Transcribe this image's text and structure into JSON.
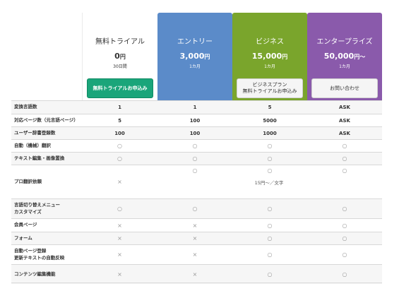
{
  "plans": [
    {
      "name": "無料トライアル",
      "price": "0",
      "unit": "円",
      "sub": "30日間",
      "button": [
        "無料トライアルお申込み"
      ]
    },
    {
      "name": "エントリー",
      "price": "3,000",
      "unit": "円",
      "sub": "1カ月",
      "button": []
    },
    {
      "name": "ビジネス",
      "price": "15,000",
      "unit": "円",
      "sub": "1カ月",
      "button": [
        "ビジネスプラン",
        "無料トライアルお申込み"
      ]
    },
    {
      "name": "エンタープライズ",
      "price": "50,000",
      "unit": "円〜",
      "sub": "1カ月",
      "button": [
        "お問い合わせ"
      ]
    }
  ],
  "marks": {
    "circle": "○",
    "cross": "×"
  },
  "rows": [
    {
      "label": [
        "変換言語数"
      ],
      "cells": [
        "1",
        "1",
        "5",
        "ASK"
      ]
    },
    {
      "label": [
        "対応ページ数（元言語ページ）"
      ],
      "cells": [
        "5",
        "100",
        "5000",
        "ASK"
      ]
    },
    {
      "label": [
        "ユーザー辞書登録数"
      ],
      "cells": [
        "100",
        "100",
        "1000",
        "ASK"
      ]
    },
    {
      "label": [
        "自動（機械）翻訳"
      ],
      "cells": [
        "○",
        "○",
        "○",
        "○"
      ]
    },
    {
      "label": [
        "テキスト編集・画像置換"
      ],
      "cells": [
        "○",
        "○",
        "○",
        "○"
      ]
    },
    {
      "label": [
        "プロ翻訳依頼"
      ],
      "cells": [
        "×",
        "○",
        "○",
        "○"
      ],
      "note": "15円〜／文字"
    },
    {
      "label": [
        "言語切り替えメニュー",
        "カスタマイズ"
      ],
      "cells": [
        "○",
        "○",
        "○",
        "○"
      ]
    },
    {
      "label": [
        "会員ページ"
      ],
      "cells": [
        "×",
        "×",
        "○",
        "○"
      ]
    },
    {
      "label": [
        "フォーム"
      ],
      "cells": [
        "×",
        "×",
        "○",
        "○"
      ]
    },
    {
      "label": [
        "自動ページ登録",
        "更新テキストの自動反映"
      ],
      "cells": [
        "×",
        "×",
        "○",
        "○"
      ]
    },
    {
      "label": [
        "コンテンツ編集機能"
      ],
      "cells": [
        "×",
        "×",
        "○",
        "○"
      ]
    }
  ]
}
